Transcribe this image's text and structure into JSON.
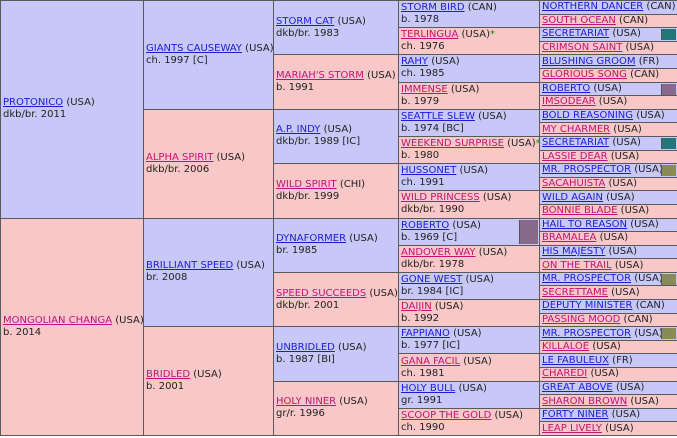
{
  "pedigree": {
    "g1": [
      {
        "name": "PROTONICO",
        "country": "(USA)",
        "detail": "dkb/br. 2011"
      },
      {
        "name": "MONGOLIAN CHANGA",
        "country": "(USA)",
        "detail": "b. 2014"
      }
    ],
    "g2": [
      {
        "name": "GIANTS CAUSEWAY",
        "country": "(USA)",
        "detail": "ch. 1997 [C]"
      },
      {
        "name": "ALPHA SPIRIT",
        "country": "(USA)",
        "detail": "dkb/br. 2006"
      },
      {
        "name": "BRILLIANT SPEED",
        "country": "(USA)",
        "detail": "br. 2008"
      },
      {
        "name": "BRIDLED",
        "country": "(USA)",
        "detail": "b. 2001"
      }
    ],
    "g3": [
      {
        "name": "STORM CAT",
        "country": "(USA)",
        "detail": "dkb/br. 1983"
      },
      {
        "name": "MARIAH'S STORM",
        "country": "(USA)",
        "detail": "b. 1991"
      },
      {
        "name": "A.P. INDY",
        "country": "(USA)",
        "detail": "dkb/br. 1989 [IC]"
      },
      {
        "name": "WILD SPIRIT",
        "country": "(CHI)",
        "detail": "dkb/br. 1999"
      },
      {
        "name": "DYNAFORMER",
        "country": "(USA)",
        "detail": "br. 1985"
      },
      {
        "name": "SPEED SUCCEEDS",
        "country": "(USA)",
        "detail": "dkb/br. 2001"
      },
      {
        "name": "UNBRIDLED",
        "country": "(USA)",
        "detail": "b. 1987 [BI]"
      },
      {
        "name": "HOLY NINER",
        "country": "(USA)",
        "detail": "gr/r. 1996"
      }
    ],
    "g4": [
      {
        "name": "STORM BIRD",
        "country": "(CAN)",
        "detail": "b. 1978",
        "mark": ""
      },
      {
        "name": "TERLINGUA",
        "country": "(USA)",
        "detail": "ch. 1976",
        "mark": "*"
      },
      {
        "name": "RAHY",
        "country": "(USA)",
        "detail": "ch. 1985",
        "mark": ""
      },
      {
        "name": "IMMENSE",
        "country": "(USA)",
        "detail": "b. 1979",
        "mark": ""
      },
      {
        "name": "SEATTLE SLEW",
        "country": "(USA)",
        "detail": "b. 1974 [BC]",
        "mark": ""
      },
      {
        "name": "WEEKEND SURPRISE",
        "country": "(USA)",
        "detail": "b. 1980",
        "mark": "*"
      },
      {
        "name": "HUSSONET",
        "country": "(USA)",
        "detail": "ch. 1991",
        "mark": ""
      },
      {
        "name": "WILD PRINCESS",
        "country": "(USA)",
        "detail": "dkb/br. 1990",
        "mark": ""
      },
      {
        "name": "ROBERTO",
        "country": "(USA)",
        "detail": "b. 1969 [C]",
        "mark": ""
      },
      {
        "name": "ANDOVER WAY",
        "country": "(USA)",
        "detail": "dkb/br. 1978",
        "mark": ""
      },
      {
        "name": "GONE WEST",
        "country": "(USA)",
        "detail": "br. 1984 [IC]",
        "mark": ""
      },
      {
        "name": "DAIJIN",
        "country": "(USA)",
        "detail": "b. 1992",
        "mark": ""
      },
      {
        "name": "FAPPIANO",
        "country": "(USA)",
        "detail": "b. 1977 [IC]",
        "mark": ""
      },
      {
        "name": "GANA FACIL",
        "country": "(USA)",
        "detail": "ch. 1981",
        "mark": ""
      },
      {
        "name": "HOLY BULL",
        "country": "(USA)",
        "detail": "gr. 1991",
        "mark": ""
      },
      {
        "name": "SCOOP THE GOLD",
        "country": "(USA)",
        "detail": "ch. 1990",
        "mark": ""
      }
    ],
    "g5": [
      {
        "name": "NORTHERN DANCER",
        "country": "(CAN)"
      },
      {
        "name": "SOUTH OCEAN",
        "country": "(CAN)"
      },
      {
        "name": "SECRETARIAT",
        "country": "(USA)"
      },
      {
        "name": "CRIMSON SAINT",
        "country": "(USA)"
      },
      {
        "name": "BLUSHING GROOM",
        "country": "(FR)"
      },
      {
        "name": "GLORIOUS SONG",
        "country": "(CAN)"
      },
      {
        "name": "ROBERTO",
        "country": "(USA)"
      },
      {
        "name": "IMSODEAR",
        "country": "(USA)"
      },
      {
        "name": "BOLD REASONING",
        "country": "(USA)"
      },
      {
        "name": "MY CHARMER",
        "country": "(USA)"
      },
      {
        "name": "SECRETARIAT",
        "country": "(USA)"
      },
      {
        "name": "LASSIE DEAR",
        "country": "(USA)"
      },
      {
        "name": "MR. PROSPECTOR",
        "country": "(USA)"
      },
      {
        "name": "SACAHUISTA",
        "country": "(USA)"
      },
      {
        "name": "WILD AGAIN",
        "country": "(USA)"
      },
      {
        "name": "BONNIE BLADE",
        "country": "(USA)"
      },
      {
        "name": "HAIL TO REASON",
        "country": "(USA)"
      },
      {
        "name": "BRAMALEA",
        "country": "(USA)"
      },
      {
        "name": "HIS MAJESTY",
        "country": "(USA)"
      },
      {
        "name": "ON THE TRAIL",
        "country": "(USA)"
      },
      {
        "name": "MR. PROSPECTOR",
        "country": "(USA)"
      },
      {
        "name": "SECRETTAME",
        "country": "(USA)"
      },
      {
        "name": "DEPUTY MINISTER",
        "country": "(CAN)"
      },
      {
        "name": "PASSING MOOD",
        "country": "(CAN)"
      },
      {
        "name": "MR. PROSPECTOR",
        "country": "(USA)"
      },
      {
        "name": "KILLALOE",
        "country": "(USA)"
      },
      {
        "name": "LE FABULEUX",
        "country": "(FR)"
      },
      {
        "name": "CHAREDI",
        "country": "(USA)"
      },
      {
        "name": "GREAT ABOVE",
        "country": "(USA)"
      },
      {
        "name": "SHARON BROWN",
        "country": "(USA)"
      },
      {
        "name": "FORTY NINER",
        "country": "(USA)"
      },
      {
        "name": "LEAP LIVELY",
        "country": "(USA)"
      }
    ]
  },
  "colors": {
    "male_bg": "#c8c8f8",
    "female_bg": "#f8c8c8",
    "link_male": "#1c1cd6",
    "link_female": "#c4127a",
    "asterisk": "#0a8a20",
    "border": "#5a5a5a",
    "bar_teal": "#207878",
    "bar_olive": "#8a8a56",
    "bar_mauve": "#8a6a8a"
  }
}
